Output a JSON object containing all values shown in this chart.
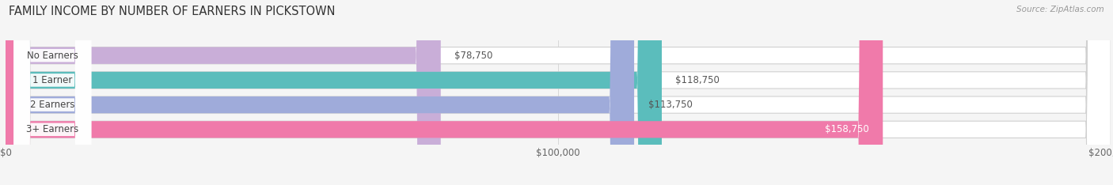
{
  "title": "FAMILY INCOME BY NUMBER OF EARNERS IN PICKSTOWN",
  "source": "Source: ZipAtlas.com",
  "categories": [
    "No Earners",
    "1 Earner",
    "2 Earners",
    "3+ Earners"
  ],
  "values": [
    78750,
    118750,
    113750,
    158750
  ],
  "bar_colors": [
    "#c9aed8",
    "#5bbdbc",
    "#9fabda",
    "#f07aaa"
  ],
  "value_labels": [
    "$78,750",
    "$118,750",
    "$113,750",
    "$158,750"
  ],
  "xlim": [
    0,
    200000
  ],
  "xtick_values": [
    0,
    100000,
    200000
  ],
  "xtick_labels": [
    "$0",
    "$100,000",
    "$200,000"
  ],
  "background_color": "#f5f5f5",
  "bar_bg_color": "#ffffff",
  "title_fontsize": 10.5,
  "label_fontsize": 8.5,
  "value_fontsize": 8.5,
  "source_fontsize": 7.5
}
